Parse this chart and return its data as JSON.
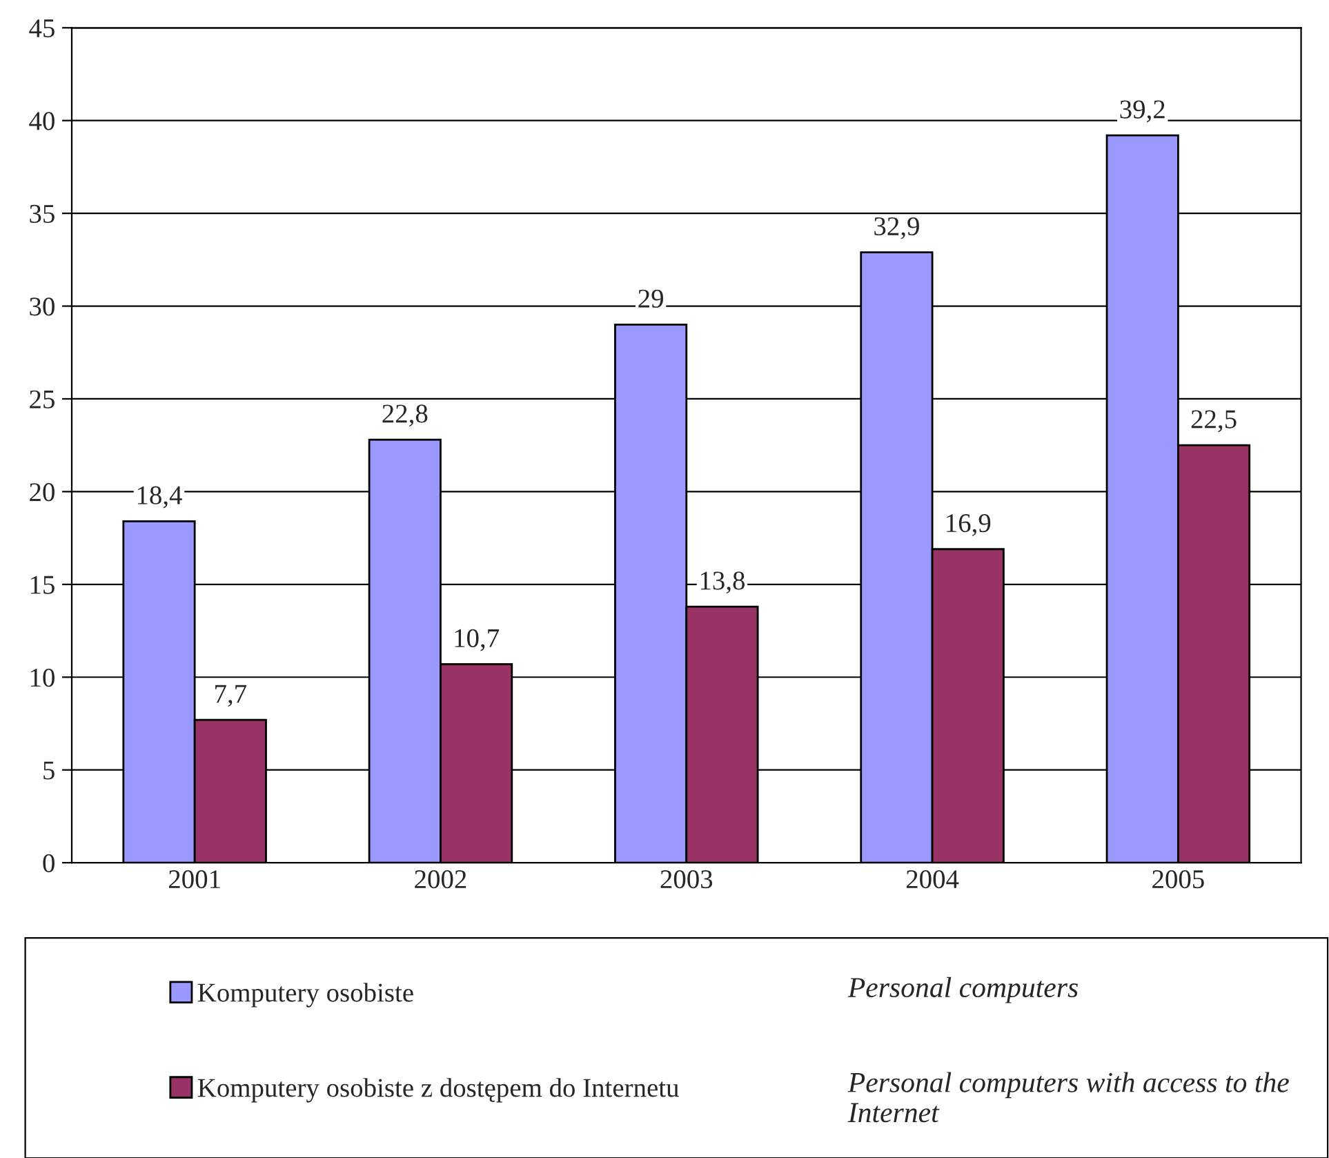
{
  "chart_data": {
    "type": "bar",
    "categories": [
      "2001",
      "2002",
      "2003",
      "2004",
      "2005"
    ],
    "series": [
      {
        "name": "Komputery osobiste",
        "color": "#9999ff",
        "values": [
          18.4,
          22.8,
          29,
          32.9,
          39.2
        ],
        "value_labels": [
          "18,4",
          "22,8",
          "29",
          "32,9",
          "39,2"
        ]
      },
      {
        "name": "Komputery osobiste z dostępem do Internetu",
        "color": "#993366",
        "values": [
          7.7,
          10.7,
          13.8,
          16.9,
          22.5
        ],
        "value_labels": [
          "7,7",
          "10,7",
          "13,8",
          "16,9",
          "22,5"
        ]
      }
    ],
    "ylim": [
      0,
      45
    ],
    "yticks": [
      0,
      5,
      10,
      15,
      20,
      25,
      30,
      35,
      40,
      45
    ],
    "grid": "y",
    "legend": "bottom",
    "annotations": [
      "Personal computers",
      "Personal computers with access to the Internet"
    ]
  }
}
